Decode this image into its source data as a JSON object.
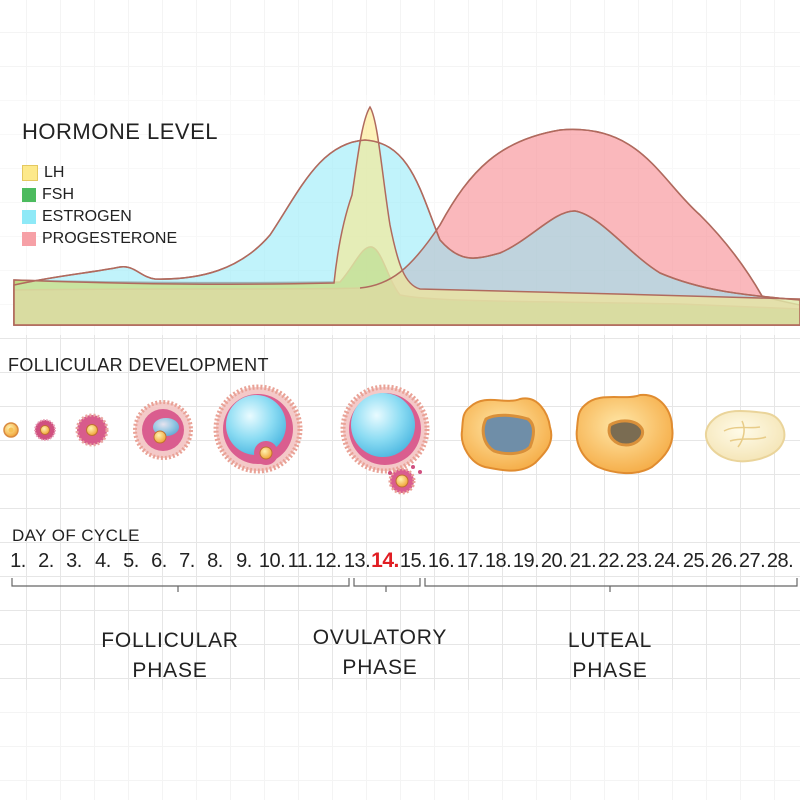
{
  "hormone_chart": {
    "title": "HORMONE LEVEL",
    "legend": [
      {
        "label": "LH",
        "color": "#fde98a"
      },
      {
        "label": "FSH",
        "color": "#4cbb5e"
      },
      {
        "label": "ESTROGEN",
        "color": "#8ee9f7"
      },
      {
        "label": "PROGESTERONE",
        "color": "#f6888f"
      }
    ]
  },
  "follicular": {
    "title": "FOLLICULAR DEVELOPMENT"
  },
  "cycle": {
    "title": "DAY OF CYCLE",
    "days": [
      "1.",
      "2.",
      "3.",
      "4.",
      "5.",
      "6.",
      "7.",
      "8.",
      "9.",
      "10.",
      "11.",
      "12.",
      "13.",
      "14.",
      "15.",
      "16.",
      "17.",
      "18.",
      "19.",
      "20.",
      "21.",
      "22.",
      "23.",
      "24.",
      "25.",
      "26.",
      "27.",
      "28."
    ],
    "highlight_day": "14.",
    "highlight_color": "#e11d23"
  },
  "phases": {
    "follicular": {
      "line1": "FOLLICULAR",
      "line2": "PHASE"
    },
    "ovulatory": {
      "line1": "OVULATORY",
      "line2": "PHASE"
    },
    "luteal": {
      "line1": "LUTEAL",
      "line2": "PHASE"
    }
  }
}
